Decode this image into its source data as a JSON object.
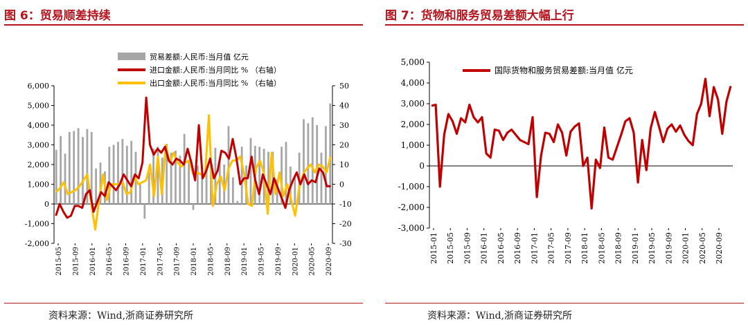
{
  "left_panel": {
    "title": "图 6：贸易顺差持续",
    "source": "资料来源：Wind,浙商证券研究所"
  },
  "right_panel": {
    "title": "图 7：货物和服务贸易差额大幅上行",
    "source": "资料来源：Wind,浙商证券研究所"
  },
  "chart_data": [
    {
      "type": "bar+line",
      "title": "贸易顺差持续",
      "x_ticks": [
        "2015-05",
        "2015-09",
        "2016-01",
        "2016-05",
        "2016-09",
        "2017-01",
        "2017-05",
        "2017-09",
        "2018-01",
        "2018-05",
        "2018-09",
        "2019-01",
        "2019-05",
        "2019-09",
        "2020-01",
        "2020-05",
        "2020-09"
      ],
      "y_left": {
        "min": -2000,
        "max": 6000,
        "ticks": [
          "-2,000",
          "-1,000",
          "0",
          "1,000",
          "2,000",
          "3,000",
          "4,000",
          "5,000",
          "6,000"
        ]
      },
      "y_right": {
        "min": -30,
        "max": 50,
        "ticks": [
          "-30",
          "-20",
          "-10",
          "0",
          "10",
          "20",
          "30",
          "40",
          "50"
        ]
      },
      "legend_position": "top-center",
      "series": [
        {
          "name": "贸易差额:人民币:当月值 亿元",
          "type": "bar",
          "axis": "left",
          "color": "#a6a6a6",
          "values": [
            2750,
            3450,
            2550,
            3650,
            3700,
            3850,
            3400,
            3800,
            3650,
            1800,
            2100,
            1650,
            2900,
            3000,
            3150,
            3300,
            2950,
            3200,
            2650,
            1000,
            -750,
            1600,
            2800,
            2900,
            2350,
            3050,
            2600,
            2700,
            2450,
            3550,
            2250,
            -300,
            1950,
            1550,
            1950,
            2250,
            2850,
            2150,
            2000,
            3950,
            1350,
            150,
            2900,
            1950,
            3350,
            2950,
            2900,
            2800,
            2650,
            2650,
            1250,
            2900,
            3150,
            1900,
            1450,
            2600,
            4300,
            4100,
            4400,
            4000,
            2600,
            3950,
            5100
          ]
        },
        {
          "name": "进口金额:人民币:当月同比 % （右轴）",
          "type": "line",
          "axis": "right",
          "color": "#c00000",
          "values": [
            -16,
            -10,
            -14,
            -17,
            -16,
            -11,
            -11,
            -12,
            -5,
            -3,
            -14,
            -9,
            -4,
            -6,
            1,
            -1,
            -3,
            0,
            5,
            2,
            -1,
            5,
            3,
            11,
            44,
            20,
            15,
            18,
            16,
            19,
            12,
            10,
            13,
            12,
            10,
            18,
            11,
            2,
            30,
            3,
            7,
            13,
            3,
            7,
            17,
            16,
            13,
            23,
            13,
            0,
            3,
            3,
            14,
            2,
            -5,
            5,
            0,
            -5,
            3,
            -2,
            -7,
            -12,
            -3,
            2,
            6,
            0,
            5,
            0,
            2,
            1,
            8,
            6,
            -1,
            -1
          ]
        },
        {
          "name": "出口金额:人民币:当月同比 % （右轴）",
          "type": "line",
          "axis": "right",
          "color": "#ffc000",
          "values": [
            -4,
            -2,
            1,
            -5,
            -4,
            -3,
            -1,
            2,
            5,
            -10,
            -23,
            -8,
            5,
            -8,
            0,
            0,
            0,
            1,
            -5,
            -4,
            4,
            0,
            1,
            2,
            10,
            -6,
            14,
            -5,
            20,
            11,
            16,
            11,
            9,
            11,
            12,
            5,
            6,
            5,
            4,
            35,
            -11,
            0,
            4,
            -3,
            8,
            12,
            12,
            14,
            5,
            -10,
            -11,
            8,
            12,
            6,
            -15,
            16,
            -5,
            6,
            -6,
            0,
            -8,
            -16,
            -2,
            5,
            8,
            10,
            6,
            10,
            9,
            6,
            14
          ]
        }
      ]
    },
    {
      "type": "line",
      "title": "货物和服务贸易差额大幅上行",
      "x_ticks": [
        "2015-01",
        "2015-05",
        "2015-09",
        "2016-01",
        "2016-05",
        "2016-09",
        "2017-01",
        "2017-05",
        "2017-09",
        "2018-01",
        "2018-05",
        "2018-09",
        "2019-01",
        "2019-05",
        "2019-09",
        "2020-01",
        "2020-05",
        "2020-09"
      ],
      "y": {
        "min": -3000,
        "max": 5000,
        "ticks": [
          "-3,000",
          "-2,000",
          "-1,000",
          "0",
          "1,000",
          "2,000",
          "3,000",
          "4,000",
          "5,000"
        ]
      },
      "legend_position": "top-left",
      "series": [
        {
          "name": "国际货物和服务贸易差额:当月值 亿元",
          "color": "#c00000",
          "values": [
            2900,
            2950,
            -1000,
            1500,
            2500,
            2150,
            1550,
            2300,
            2100,
            2950,
            2350,
            2100,
            2350,
            600,
            400,
            1750,
            1700,
            1250,
            1600,
            1750,
            1500,
            1250,
            1150,
            1050,
            2350,
            -1500,
            500,
            1600,
            1550,
            1150,
            2000,
            1600,
            500,
            1650,
            1900,
            2050,
            0,
            400,
            -2050,
            300,
            -100,
            1850,
            400,
            300,
            900,
            1500,
            2150,
            2300,
            1600,
            -800,
            1250,
            -200,
            1800,
            2600,
            1900,
            1150,
            1800,
            2000,
            1650,
            1950,
            1500,
            1200,
            1000,
            2500,
            3000,
            4200,
            2400,
            3800,
            3200,
            1550,
            3100,
            3850
          ]
        }
      ]
    }
  ]
}
